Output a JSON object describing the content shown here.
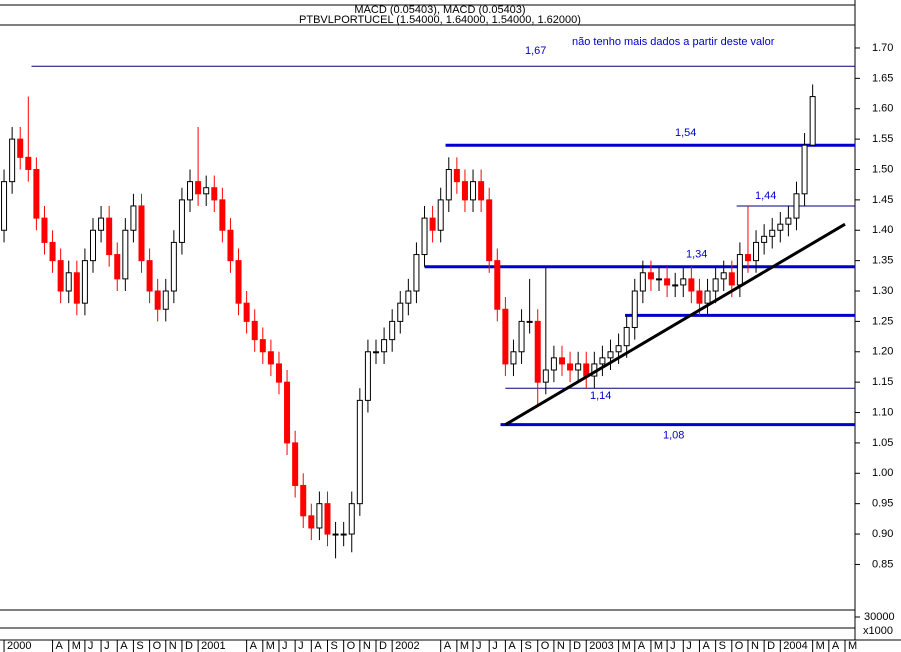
{
  "chart_data": {
    "type": "candlestick",
    "title": "PTBVLPORTUCEL (1.54000, 1.64000, 1.54000, 1.62000)",
    "subtitle": "MACD (0.05403), MACD (0.05403)",
    "annotation": "não tenho mais dados a partir deste valor",
    "x": [
      0,
      0.5,
      1,
      1.5,
      2,
      2.5,
      3,
      3.5,
      4,
      4.5,
      5,
      5.5,
      6,
      6.5,
      7,
      7.5,
      8,
      8.5,
      9,
      9.5,
      10,
      10.5,
      11,
      11.5,
      12,
      12.5,
      13,
      13.5,
      14,
      14.5,
      15,
      15.5,
      16,
      16.5,
      17,
      17.5,
      18,
      18.5,
      19,
      19.5,
      20,
      20.5,
      21,
      21.5,
      22,
      22.5,
      23,
      23.5,
      24,
      24.5,
      25,
      25.5,
      26,
      26.5,
      27,
      27.5,
      28,
      28.5,
      29,
      29.5,
      30,
      30.5,
      31,
      31.5,
      32,
      32.5,
      33,
      33.5,
      34,
      34.5,
      35,
      35.5,
      36,
      36.5,
      37,
      37.5,
      38,
      38.5,
      39,
      39.5,
      40,
      40.5,
      41,
      41.5,
      42,
      42.5,
      43,
      43.5,
      44,
      44.5,
      45,
      45.5,
      46,
      46.5,
      47,
      47.5,
      48,
      48.5,
      49,
      49.5,
      50
    ],
    "open": [
      1.4,
      1.48,
      1.55,
      1.52,
      1.5,
      1.42,
      1.38,
      1.35,
      1.3,
      1.33,
      1.28,
      1.35,
      1.4,
      1.42,
      1.36,
      1.32,
      1.4,
      1.44,
      1.35,
      1.3,
      1.27,
      1.3,
      1.38,
      1.45,
      1.48,
      1.46,
      1.47,
      1.45,
      1.4,
      1.35,
      1.28,
      1.25,
      1.22,
      1.2,
      1.18,
      1.15,
      1.05,
      0.98,
      0.93,
      0.91,
      0.95,
      0.9,
      0.9,
      0.9,
      0.95,
      1.12,
      1.2,
      1.2,
      1.22,
      1.25,
      1.28,
      1.3,
      1.36,
      1.42,
      1.4,
      1.45,
      1.5,
      1.48,
      1.45,
      1.48,
      1.45,
      1.35,
      1.27,
      1.18,
      1.2,
      1.25,
      1.25,
      1.15,
      1.17,
      1.19,
      1.18,
      1.17,
      1.18,
      1.16,
      1.18,
      1.19,
      1.2,
      1.21,
      1.24,
      1.3,
      1.33,
      1.32,
      1.32,
      1.31,
      1.31,
      1.32,
      1.3,
      1.28,
      1.3,
      1.32,
      1.33,
      1.31,
      1.36,
      1.35,
      1.38,
      1.39,
      1.4,
      1.41,
      1.42,
      1.46,
      1.54
    ],
    "high": [
      1.5,
      1.57,
      1.57,
      1.62,
      1.52,
      1.44,
      1.4,
      1.37,
      1.35,
      1.35,
      1.37,
      1.42,
      1.44,
      1.44,
      1.38,
      1.42,
      1.46,
      1.46,
      1.37,
      1.32,
      1.32,
      1.4,
      1.47,
      1.5,
      1.57,
      1.49,
      1.49,
      1.47,
      1.42,
      1.37,
      1.3,
      1.27,
      1.24,
      1.22,
      1.2,
      1.17,
      1.07,
      1.0,
      0.95,
      0.97,
      0.97,
      0.92,
      0.92,
      0.97,
      1.14,
      1.22,
      1.22,
      1.24,
      1.27,
      1.3,
      1.32,
      1.38,
      1.44,
      1.44,
      1.47,
      1.52,
      1.52,
      1.5,
      1.5,
      1.5,
      1.47,
      1.37,
      1.29,
      1.22,
      1.27,
      1.32,
      1.27,
      1.34,
      1.21,
      1.21,
      1.2,
      1.2,
      1.2,
      1.2,
      1.21,
      1.22,
      1.23,
      1.26,
      1.32,
      1.35,
      1.35,
      1.34,
      1.34,
      1.33,
      1.34,
      1.34,
      1.32,
      1.32,
      1.34,
      1.35,
      1.35,
      1.38,
      1.44,
      1.4,
      1.41,
      1.42,
      1.43,
      1.44,
      1.48,
      1.56,
      1.64
    ],
    "low": [
      1.38,
      1.46,
      1.5,
      1.48,
      1.4,
      1.36,
      1.33,
      1.28,
      1.28,
      1.26,
      1.26,
      1.33,
      1.38,
      1.34,
      1.3,
      1.3,
      1.38,
      1.33,
      1.28,
      1.25,
      1.25,
      1.28,
      1.36,
      1.43,
      1.44,
      1.44,
      1.43,
      1.38,
      1.33,
      1.26,
      1.23,
      1.2,
      1.18,
      1.16,
      1.13,
      1.03,
      0.96,
      0.91,
      0.89,
      0.89,
      0.88,
      0.86,
      0.88,
      0.87,
      0.93,
      1.1,
      1.18,
      1.18,
      1.2,
      1.23,
      1.26,
      1.28,
      1.34,
      1.38,
      1.38,
      1.43,
      1.46,
      1.43,
      1.43,
      1.43,
      1.33,
      1.25,
      1.16,
      1.16,
      1.18,
      1.23,
      1.11,
      1.13,
      1.15,
      1.16,
      1.15,
      1.15,
      1.14,
      1.14,
      1.16,
      1.17,
      1.18,
      1.19,
      1.22,
      1.28,
      1.3,
      1.3,
      1.29,
      1.29,
      1.29,
      1.28,
      1.26,
      1.26,
      1.28,
      1.3,
      1.29,
      1.29,
      1.33,
      1.33,
      1.36,
      1.37,
      1.38,
      1.39,
      1.4,
      1.44,
      1.54
    ],
    "close": [
      1.48,
      1.55,
      1.52,
      1.5,
      1.42,
      1.38,
      1.35,
      1.3,
      1.33,
      1.28,
      1.35,
      1.4,
      1.42,
      1.36,
      1.32,
      1.4,
      1.44,
      1.35,
      1.3,
      1.27,
      1.3,
      1.38,
      1.45,
      1.48,
      1.46,
      1.47,
      1.45,
      1.4,
      1.35,
      1.28,
      1.25,
      1.22,
      1.2,
      1.18,
      1.15,
      1.05,
      0.98,
      0.93,
      0.91,
      0.95,
      0.9,
      0.9,
      0.9,
      0.95,
      1.12,
      1.2,
      1.2,
      1.22,
      1.25,
      1.28,
      1.3,
      1.36,
      1.42,
      1.4,
      1.45,
      1.5,
      1.48,
      1.45,
      1.48,
      1.45,
      1.35,
      1.27,
      1.18,
      1.2,
      1.25,
      1.25,
      1.15,
      1.17,
      1.19,
      1.18,
      1.17,
      1.18,
      1.16,
      1.18,
      1.19,
      1.2,
      1.21,
      1.24,
      1.3,
      1.33,
      1.32,
      1.32,
      1.31,
      1.31,
      1.32,
      1.3,
      1.28,
      1.3,
      1.32,
      1.33,
      1.31,
      1.36,
      1.35,
      1.38,
      1.39,
      1.4,
      1.41,
      1.42,
      1.46,
      1.54,
      1.62
    ],
    "up_color": "#000000",
    "down_color": "#ff0000",
    "xlim": [
      -0.25,
      52
    ],
    "ylim": [
      0.775,
      1.7625
    ],
    "xticks": [
      {
        "value": 0,
        "label": "2000"
      },
      {
        "value": 3,
        "label": "A"
      },
      {
        "value": 4,
        "label": "M"
      },
      {
        "value": 5,
        "label": "J"
      },
      {
        "value": 6,
        "label": "J"
      },
      {
        "value": 7,
        "label": "A"
      },
      {
        "value": 8,
        "label": "S"
      },
      {
        "value": 9,
        "label": "O"
      },
      {
        "value": 10,
        "label": "N"
      },
      {
        "value": 11,
        "label": "D"
      },
      {
        "value": 12,
        "label": "2001"
      },
      {
        "value": 15,
        "label": "A"
      },
      {
        "value": 16,
        "label": "M"
      },
      {
        "value": 17,
        "label": "J"
      },
      {
        "value": 18,
        "label": "J"
      },
      {
        "value": 19,
        "label": "A"
      },
      {
        "value": 20,
        "label": "S"
      },
      {
        "value": 21,
        "label": "O"
      },
      {
        "value": 22,
        "label": "N"
      },
      {
        "value": 23,
        "label": "D"
      },
      {
        "value": 24,
        "label": "2002"
      },
      {
        "value": 27,
        "label": "A"
      },
      {
        "value": 28,
        "label": "M"
      },
      {
        "value": 29,
        "label": "J"
      },
      {
        "value": 30,
        "label": "J"
      },
      {
        "value": 31,
        "label": "A"
      },
      {
        "value": 32,
        "label": "S"
      },
      {
        "value": 33,
        "label": "O"
      },
      {
        "value": 34,
        "label": "N"
      },
      {
        "value": 35,
        "label": "D"
      },
      {
        "value": 36,
        "label": "2003"
      },
      {
        "value": 38,
        "label": "M"
      },
      {
        "value": 39,
        "label": "A"
      },
      {
        "value": 40,
        "label": "M"
      },
      {
        "value": 41,
        "label": "J"
      },
      {
        "value": 42,
        "label": "J"
      },
      {
        "value": 43,
        "label": "A"
      },
      {
        "value": 44,
        "label": "S"
      },
      {
        "value": 45,
        "label": "O"
      },
      {
        "value": 46,
        "label": "N"
      },
      {
        "value": 47,
        "label": "D"
      },
      {
        "value": 48,
        "label": "2004"
      },
      {
        "value": 50,
        "label": "M"
      },
      {
        "value": 51,
        "label": "A"
      },
      {
        "value": 52,
        "label": "M"
      }
    ],
    "yticks": [
      {
        "value": 0.85,
        "label": "0.85"
      },
      {
        "value": 0.9,
        "label": "0.90"
      },
      {
        "value": 0.95,
        "label": "0.95"
      },
      {
        "value": 1.0,
        "label": "1.00"
      },
      {
        "value": 1.05,
        "label": "1.05"
      },
      {
        "value": 1.1,
        "label": "1.10"
      },
      {
        "value": 1.15,
        "label": "1.15"
      },
      {
        "value": 1.2,
        "label": "1.20"
      },
      {
        "value": 1.25,
        "label": "1.25"
      },
      {
        "value": 1.3,
        "label": "1.30"
      },
      {
        "value": 1.35,
        "label": "1.35"
      },
      {
        "value": 1.4,
        "label": "1.40"
      },
      {
        "value": 1.45,
        "label": "1.45"
      },
      {
        "value": 1.5,
        "label": "1.50"
      },
      {
        "value": 1.55,
        "label": "1.55"
      },
      {
        "value": 1.6,
        "label": "1.60"
      },
      {
        "value": 1.65,
        "label": "1.65"
      },
      {
        "value": 1.7,
        "label": "1.70"
      }
    ],
    "levels": [
      {
        "value": 1.67,
        "label": "1,67",
        "start": 1.7,
        "style": "thin"
      },
      {
        "value": 1.54,
        "label": "1,54",
        "start": 27.3,
        "style": "thick"
      },
      {
        "value": 1.44,
        "label": "1,44",
        "start": 45.3,
        "style": "thin"
      },
      {
        "value": 1.34,
        "label": "1,34",
        "start": 26,
        "style": "thick"
      },
      {
        "value": 1.26,
        "label": null,
        "start": 38.4,
        "style": "thick"
      },
      {
        "value": 1.14,
        "label": "1,14",
        "start": 31,
        "style": "thin"
      },
      {
        "value": 1.08,
        "label": "1,08",
        "start": 30.7,
        "style": "thick"
      }
    ],
    "trendline": {
      "x": [
        31,
        52
      ],
      "y": [
        1.08,
        1.41
      ],
      "color": "#000000"
    },
    "level_color": "#0000cc",
    "volume_axis": {
      "ticks": [
        30000
      ],
      "unit_label": "x1000"
    }
  }
}
